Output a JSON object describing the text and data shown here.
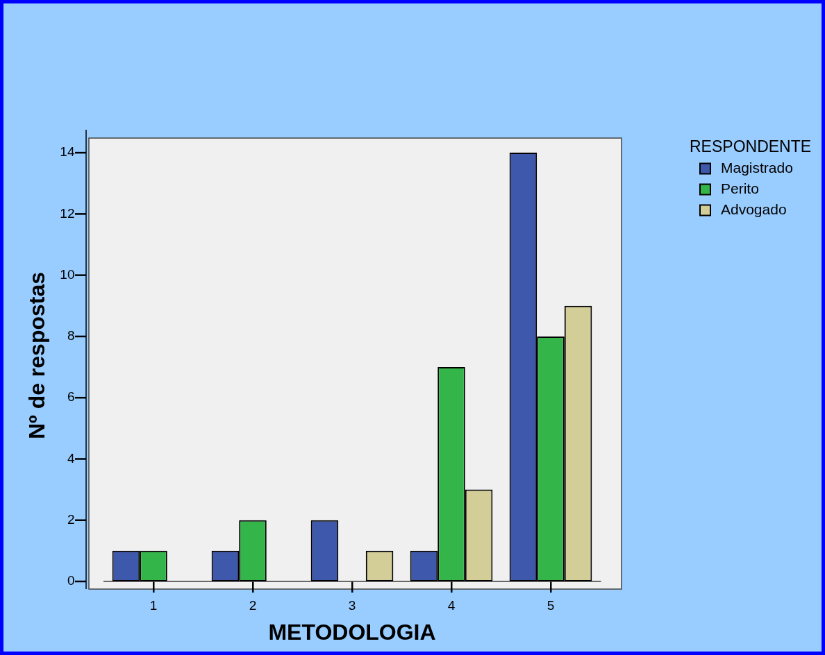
{
  "chart_data": {
    "type": "bar",
    "xlabel": "METODOLOGIA",
    "ylabel": "Nº de respostas",
    "legend_title": "RESPONDENTE",
    "categories": [
      "1",
      "2",
      "3",
      "4",
      "5"
    ],
    "series": [
      {
        "name": "Magistrado",
        "color": "#3e58ac",
        "values": [
          1,
          1,
          2,
          1,
          14
        ]
      },
      {
        "name": "Perito",
        "color": "#33b54a",
        "values": [
          1,
          2,
          null,
          7,
          8
        ]
      },
      {
        "name": "Advogado",
        "color": "#d3ce97",
        "values": [
          null,
          null,
          1,
          3,
          9
        ]
      }
    ],
    "ylim": [
      0,
      14.75
    ],
    "yticks": [
      0,
      2,
      4,
      6,
      8,
      10,
      12,
      14
    ],
    "legend": "right"
  }
}
